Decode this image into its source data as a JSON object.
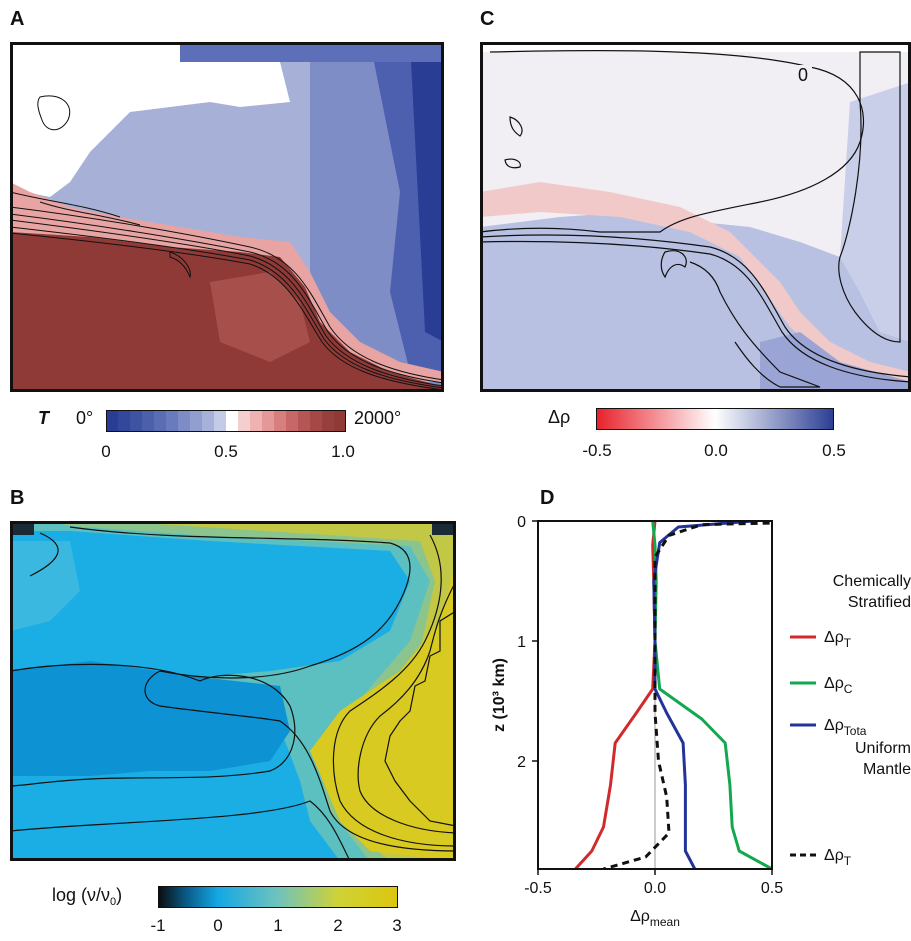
{
  "panels": {
    "a": {
      "letter": "A",
      "colorbar_label": "T",
      "left_endpoint": "0°",
      "right_endpoint": "2000°",
      "ticks": [
        "0",
        "0.5",
        "1.0"
      ]
    },
    "b": {
      "letter": "B",
      "colorbar_label": "log (ν/ν",
      "colorbar_label_sub": "0",
      "colorbar_label_close": ")",
      "ticks": [
        "-1",
        "0",
        "1",
        "2",
        "3"
      ]
    },
    "c": {
      "letter": "C",
      "colorbar_label": "Δρ",
      "contour_label": "0",
      "ticks": [
        "-0.5",
        "0.0",
        "0.5"
      ]
    },
    "d": {
      "letter": "D"
    }
  },
  "chart_data": {
    "type": "line",
    "ylabel": "z (10³ km)",
    "xlabel": "Δρ",
    "xlabel_sub": "mean",
    "xlim": [
      -0.5,
      0.5
    ],
    "ylim": [
      0,
      2.9
    ],
    "y_inverted": true,
    "x_ticks": [
      "-0.5",
      "0.0",
      "0.5"
    ],
    "y_ticks": [
      "0",
      "1",
      "2"
    ],
    "legend": {
      "group1_title": [
        "Chemically",
        "Stratified"
      ],
      "group2_title": [
        "Uniform",
        "Mantle"
      ]
    },
    "series": [
      {
        "name": "Δρ",
        "name_sub": "T",
        "group": "Chemically Stratified",
        "color": "#d12a2a",
        "dash": false,
        "points": [
          [
            0.0,
            0.0
          ],
          [
            -0.01,
            0.2
          ],
          [
            -0.005,
            0.5
          ],
          [
            0.0,
            1.0
          ],
          [
            -0.01,
            1.4
          ],
          [
            -0.08,
            1.6
          ],
          [
            -0.17,
            1.85
          ],
          [
            -0.19,
            2.2
          ],
          [
            -0.22,
            2.55
          ],
          [
            -0.27,
            2.75
          ],
          [
            -0.34,
            2.9
          ]
        ]
      },
      {
        "name": "Δρ",
        "name_sub": "C",
        "group": "Chemically Stratified",
        "color": "#13a84f",
        "dash": false,
        "points": [
          [
            -0.01,
            0.0
          ],
          [
            0.0,
            0.2
          ],
          [
            0.005,
            0.5
          ],
          [
            0.0,
            1.0
          ],
          [
            0.02,
            1.4
          ],
          [
            0.2,
            1.65
          ],
          [
            0.3,
            1.85
          ],
          [
            0.32,
            2.2
          ],
          [
            0.33,
            2.55
          ],
          [
            0.36,
            2.75
          ],
          [
            0.5,
            2.9
          ]
        ]
      },
      {
        "name": "Δρ",
        "name_sub": "Tota",
        "group": "Chemically Stratified",
        "color": "#23339a",
        "dash": false,
        "points": [
          [
            0.42,
            0.0
          ],
          [
            0.1,
            0.05
          ],
          [
            0.02,
            0.18
          ],
          [
            -0.005,
            0.5
          ],
          [
            0.0,
            1.0
          ],
          [
            0.0,
            1.4
          ],
          [
            0.05,
            1.6
          ],
          [
            0.12,
            1.85
          ],
          [
            0.13,
            2.2
          ],
          [
            0.13,
            2.55
          ],
          [
            0.13,
            2.75
          ],
          [
            0.17,
            2.9
          ]
        ]
      },
      {
        "name": "Δρ",
        "name_sub": "T",
        "group": "Uniform Mantle",
        "color": "#111111",
        "dash": true,
        "points": [
          [
            0.9,
            0.0
          ],
          [
            0.2,
            0.03
          ],
          [
            0.06,
            0.12
          ],
          [
            0.0,
            0.3
          ],
          [
            0.0,
            1.0
          ],
          [
            0.0,
            1.6
          ],
          [
            0.015,
            2.0
          ],
          [
            0.05,
            2.3
          ],
          [
            0.06,
            2.6
          ],
          [
            -0.04,
            2.8
          ],
          [
            -0.22,
            2.9
          ]
        ]
      }
    ]
  },
  "colors": {
    "map_red": "#8f3a37",
    "map_blue": "#2a3d94",
    "viscosity_yellow": "#d8c91c",
    "viscosity_blue": "#17a6e0"
  }
}
